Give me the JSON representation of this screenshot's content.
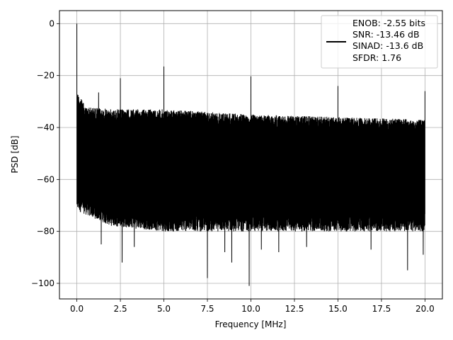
{
  "chart_data": {
    "type": "line",
    "title": "",
    "xlabel": "Frequency [MHz]",
    "ylabel": "PSD [dB]",
    "xlim": [
      -1.0,
      21.0
    ],
    "ylim": [
      -106,
      5
    ],
    "grid": true,
    "legend_placement": "top-right",
    "x_ticks": [
      0.0,
      2.5,
      5.0,
      7.5,
      10.0,
      12.5,
      15.0,
      17.5,
      20.0
    ],
    "x_tick_labels": [
      "0.0",
      "2.5",
      "5.0",
      "7.5",
      "10.0",
      "12.5",
      "15.0",
      "17.5",
      "20.0"
    ],
    "y_ticks": [
      0,
      -20,
      -40,
      -60,
      -80,
      -100
    ],
    "y_tick_labels": [
      "0",
      "−20",
      "−40",
      "−60",
      "−80",
      "−100"
    ],
    "series": [
      {
        "name": "ENOB: -2.55 bits\nSNR: -13.46 dB\nSINAD: -13.6 dB\nSFDR: 1.76",
        "color": "#000000",
        "description": "Dense noise floor spanning roughly -35 dB to -80 dB across 0-20 MHz with spurs",
        "noise_floor_band": {
          "x_range": [
            0.0,
            20.0
          ],
          "upper_envelope": [
            [
              0.0,
              -26
            ],
            [
              0.5,
              -32
            ],
            [
              2.0,
              -33
            ],
            [
              5.0,
              -33
            ],
            [
              7.5,
              -34
            ],
            [
              10.0,
              -35
            ],
            [
              12.5,
              -35.5
            ],
            [
              15.0,
              -36
            ],
            [
              17.5,
              -36.5
            ],
            [
              20.0,
              -37
            ]
          ],
          "lower_envelope": [
            [
              0.0,
              -72
            ],
            [
              2.0,
              -78
            ],
            [
              5.0,
              -80
            ],
            [
              10.0,
              -80
            ],
            [
              15.0,
              -80
            ],
            [
              20.0,
              -80
            ]
          ]
        },
        "spurs": [
          {
            "x": 0.0,
            "y": 0.0
          },
          {
            "x": 1.25,
            "y": -26.5
          },
          {
            "x": 2.5,
            "y": -21.0
          },
          {
            "x": 5.0,
            "y": -16.5
          },
          {
            "x": 10.0,
            "y": -20.3
          },
          {
            "x": 15.0,
            "y": -24.0
          },
          {
            "x": 20.0,
            "y": -26.0
          }
        ],
        "dips": [
          {
            "x": 1.4,
            "y": -85
          },
          {
            "x": 2.6,
            "y": -92
          },
          {
            "x": 3.3,
            "y": -86
          },
          {
            "x": 5.0,
            "y": -85
          },
          {
            "x": 7.5,
            "y": -98
          },
          {
            "x": 8.5,
            "y": -88
          },
          {
            "x": 8.9,
            "y": -92
          },
          {
            "x": 9.9,
            "y": -101
          },
          {
            "x": 10.6,
            "y": -87
          },
          {
            "x": 11.6,
            "y": -88
          },
          {
            "x": 13.2,
            "y": -86
          },
          {
            "x": 16.9,
            "y": -87
          },
          {
            "x": 19.0,
            "y": -95
          },
          {
            "x": 19.9,
            "y": -89
          }
        ]
      }
    ],
    "legend": {
      "lines": [
        "ENOB: -2.55 bits",
        "SNR: -13.46 dB",
        "SINAD: -13.6 dB",
        "SFDR: 1.76"
      ]
    }
  }
}
